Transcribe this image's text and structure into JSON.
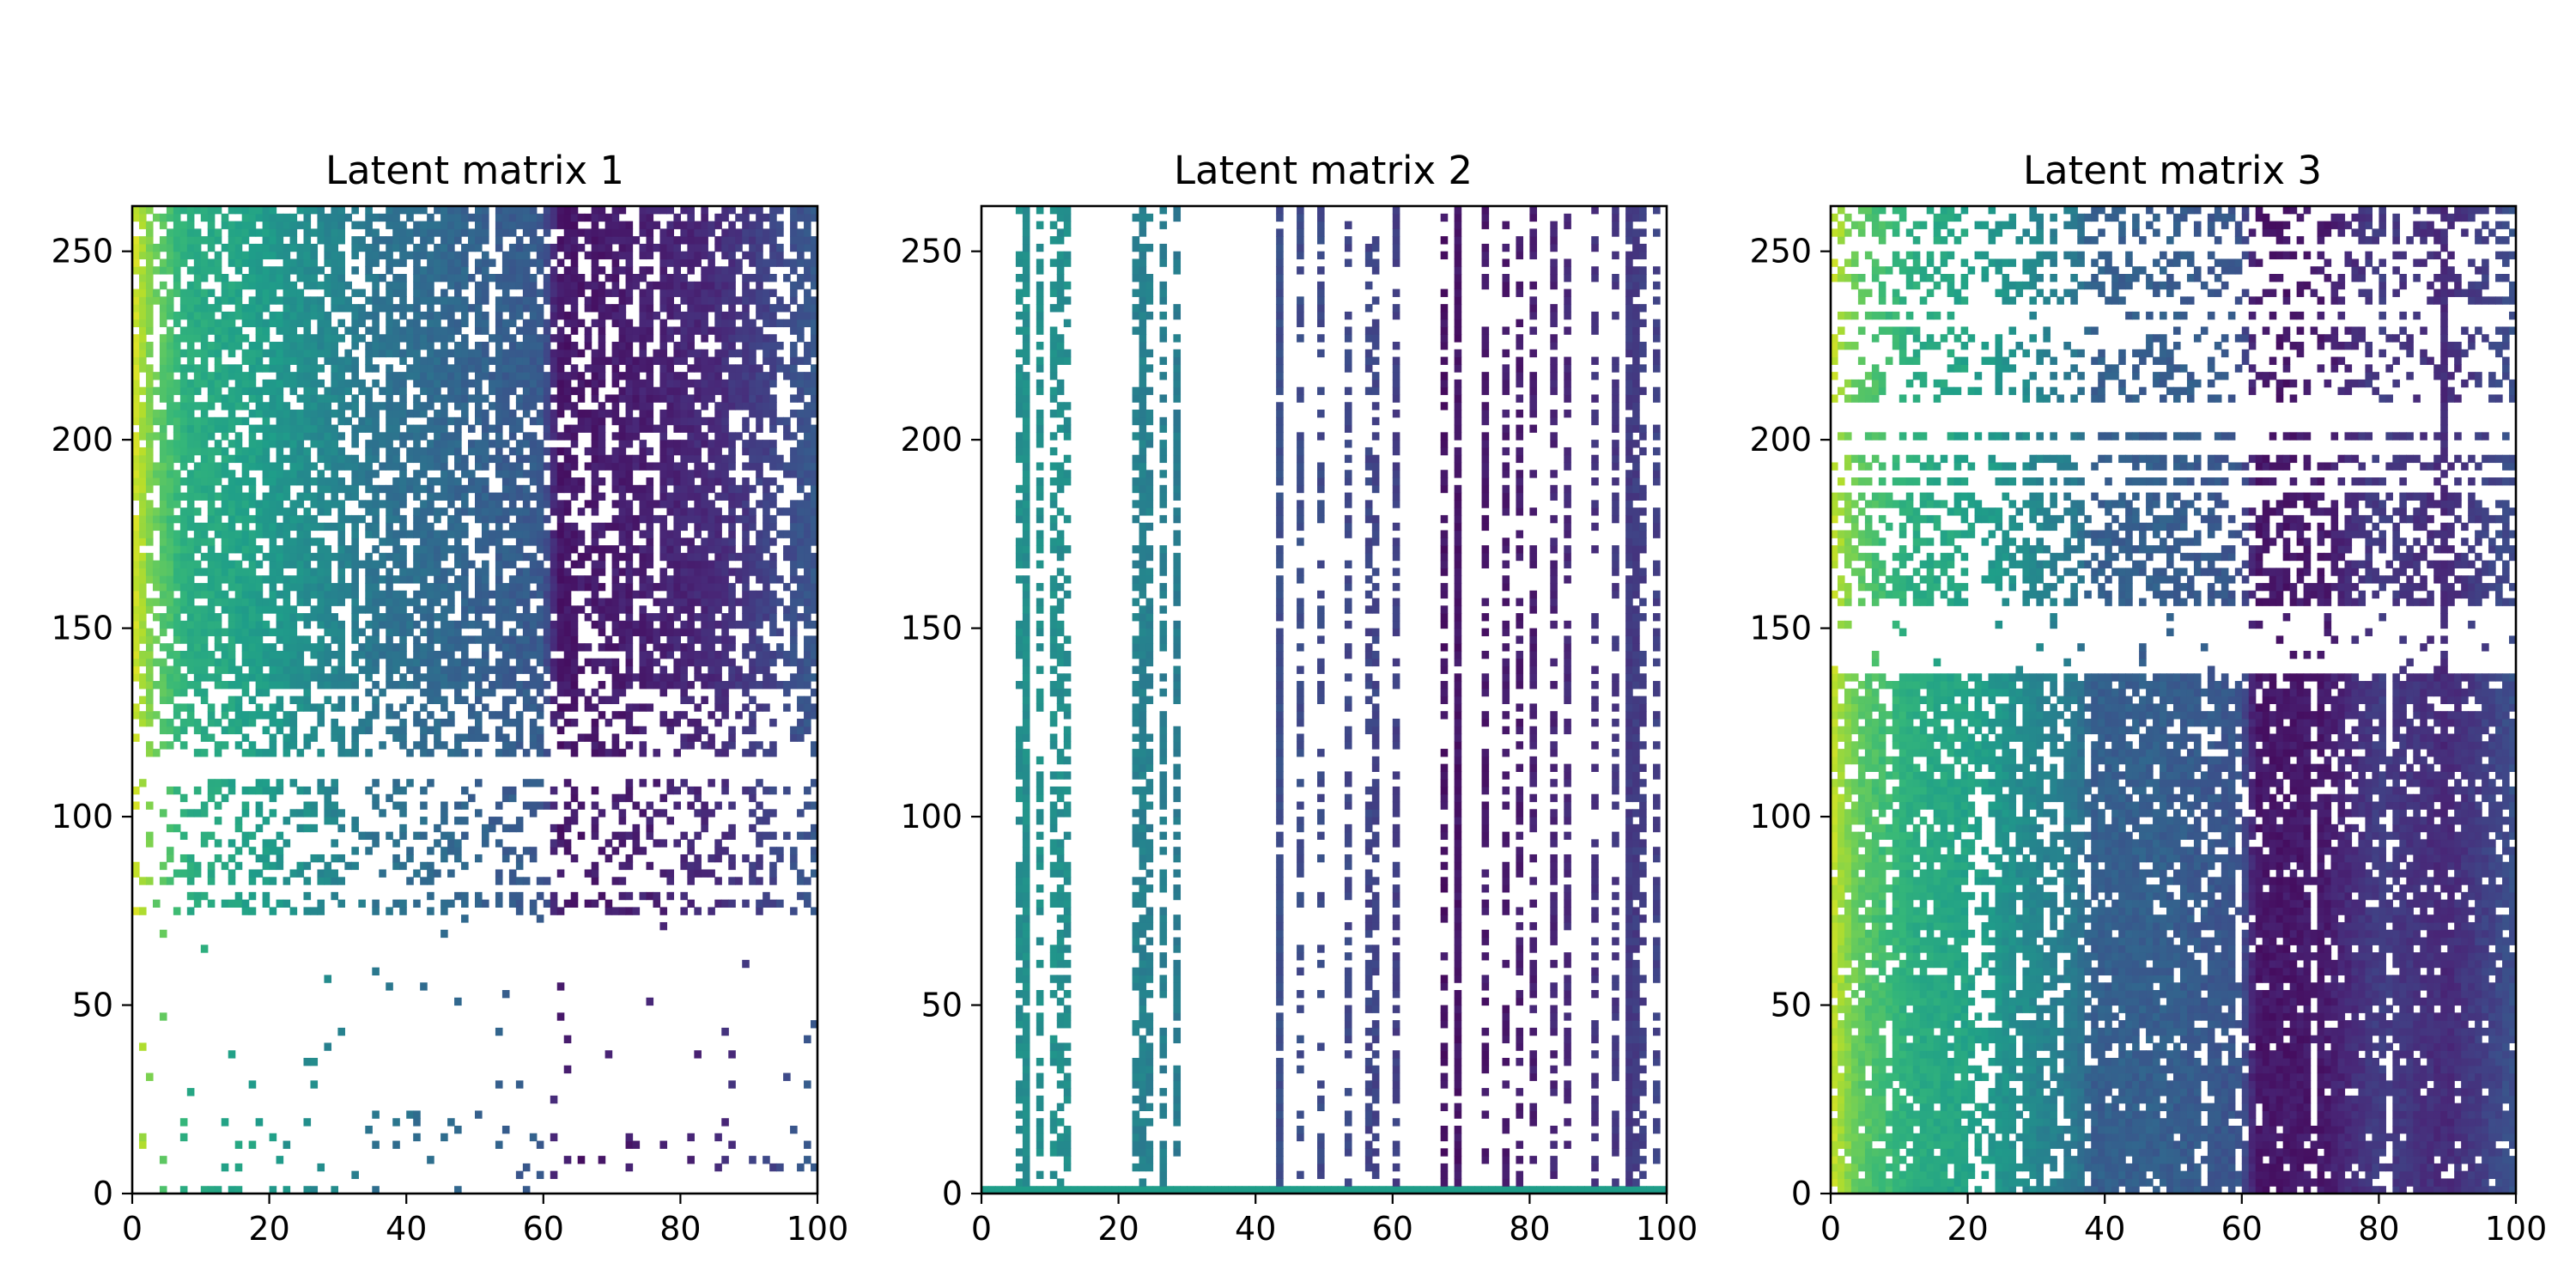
{
  "chart_data": [
    {
      "type": "heatmap",
      "title": "Latent matrix 1",
      "xlabel": "",
      "ylabel": "",
      "xlim": [
        0,
        100
      ],
      "ylim": [
        0,
        262
      ],
      "x_ticks": [
        0,
        20,
        40,
        60,
        80,
        100
      ],
      "y_ticks": [
        0,
        50,
        100,
        150,
        200,
        250
      ],
      "x_tick_labels": [
        "0",
        "20",
        "40",
        "60",
        "80",
        "100"
      ],
      "y_tick_labels": [
        "0",
        "50",
        "100",
        "150",
        "200",
        "250"
      ],
      "colormap": "viridis",
      "column_value_profile": [
        [
          0,
          0.95
        ],
        [
          3,
          0.78
        ],
        [
          8,
          0.62
        ],
        [
          16,
          0.58
        ],
        [
          22,
          0.52
        ],
        [
          30,
          0.45
        ],
        [
          36,
          0.38
        ],
        [
          45,
          0.34
        ],
        [
          52,
          0.3
        ],
        [
          60,
          0.28
        ],
        [
          62,
          0.06
        ],
        [
          72,
          0.08
        ],
        [
          85,
          0.12
        ],
        [
          93,
          0.2
        ],
        [
          100,
          0.28
        ]
      ],
      "row_bands": [
        {
          "y_range": [
            0,
            22
          ],
          "density": 0.1
        },
        {
          "y_range": [
            22,
            75
          ],
          "density": 0.02
        },
        {
          "y_range": [
            75,
            115
          ],
          "density": 0.35
        },
        {
          "y_range": [
            115,
            135
          ],
          "density": 0.45
        },
        {
          "y_range": [
            135,
            262
          ],
          "density": 0.82
        }
      ]
    },
    {
      "type": "heatmap",
      "title": "Latent matrix 2",
      "xlabel": "",
      "ylabel": "",
      "xlim": [
        0,
        100
      ],
      "ylim": [
        0,
        262
      ],
      "x_ticks": [
        0,
        20,
        40,
        60,
        80,
        100
      ],
      "y_ticks": [
        0,
        50,
        100,
        150,
        200,
        250
      ],
      "x_tick_labels": [
        "0",
        "20",
        "40",
        "60",
        "80",
        "100"
      ],
      "y_tick_labels": [
        "0",
        "50",
        "100",
        "150",
        "200",
        "250"
      ],
      "colormap": "viridis",
      "column_value_profile": [
        [
          0,
          0.48
        ],
        [
          10,
          0.5
        ],
        [
          20,
          0.45
        ],
        [
          28,
          0.42
        ],
        [
          40,
          0.25
        ],
        [
          60,
          0.2
        ],
        [
          66,
          0.05
        ],
        [
          80,
          0.08
        ],
        [
          90,
          0.15
        ],
        [
          100,
          0.2
        ]
      ],
      "sparse_columns": [
        5,
        6,
        8,
        10,
        11,
        12,
        22,
        23,
        24,
        26,
        28,
        43,
        46,
        49,
        53,
        56,
        57,
        60,
        67,
        69,
        73,
        76,
        78,
        80,
        83,
        85,
        89,
        92,
        94,
        95,
        96,
        98
      ],
      "solid_columns": [
        6,
        23,
        43,
        69,
        94,
        95
      ],
      "bottom_row_value": 0.55
    },
    {
      "type": "heatmap",
      "title": "Latent matrix 3",
      "xlabel": "",
      "ylabel": "",
      "xlim": [
        0,
        100
      ],
      "ylim": [
        0,
        262
      ],
      "x_ticks": [
        0,
        20,
        40,
        60,
        80,
        100
      ],
      "y_ticks": [
        0,
        50,
        100,
        150,
        200,
        250
      ],
      "x_tick_labels": [
        "0",
        "20",
        "40",
        "60",
        "80",
        "100"
      ],
      "y_tick_labels": [
        "0",
        "50",
        "100",
        "150",
        "200",
        "250"
      ],
      "colormap": "viridis",
      "column_value_profile": [
        [
          0,
          0.92
        ],
        [
          4,
          0.75
        ],
        [
          12,
          0.62
        ],
        [
          20,
          0.58
        ],
        [
          28,
          0.48
        ],
        [
          36,
          0.4
        ],
        [
          38,
          0.3
        ],
        [
          48,
          0.3
        ],
        [
          60,
          0.26
        ],
        [
          62,
          0.06
        ],
        [
          72,
          0.07
        ],
        [
          80,
          0.18
        ],
        [
          90,
          0.12
        ],
        [
          100,
          0.25
        ]
      ],
      "row_bands": [
        {
          "y_range": [
            0,
            75
          ],
          "density": 0.92
        },
        {
          "y_range": [
            75,
            138
          ],
          "density": 0.85
        },
        {
          "y_range": [
            138,
            155
          ],
          "density": 0.05
        },
        {
          "y_range": [
            155,
            205
          ],
          "density": 0.6
        },
        {
          "y_range": [
            205,
            235
          ],
          "density": 0.35
        },
        {
          "y_range": [
            235,
            262
          ],
          "density": 0.45
        }
      ],
      "solid_columns": [
        89
      ]
    }
  ]
}
